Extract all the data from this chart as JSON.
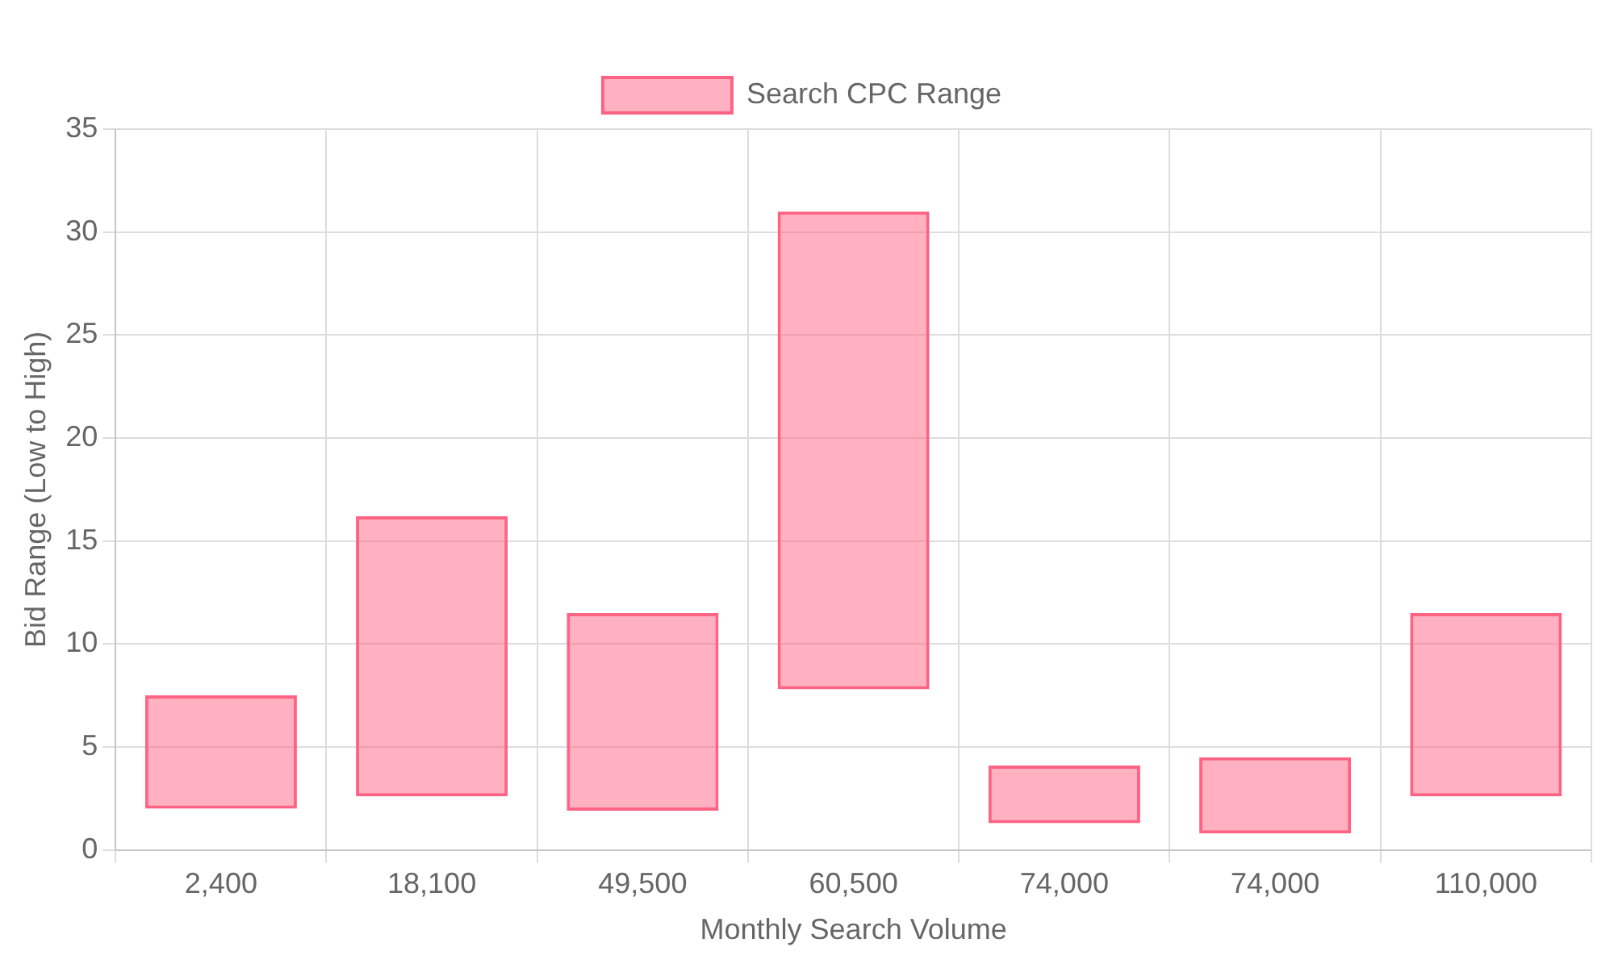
{
  "chart_data": {
    "type": "bar",
    "xlabel": "Monthly Search Volume",
    "ylabel": "Bid Range (Low to High)",
    "categories": [
      "2,400",
      "18,100",
      "49,500",
      "60,500",
      "74,000",
      "74,000",
      "110,000"
    ],
    "series": [
      {
        "name": "Search CPC Range",
        "color": "#ff6384",
        "base": [
          2,
          2.6,
          1.9,
          7.8,
          1.3,
          0.8,
          2.6
        ],
        "values": [
          5.5,
          13.6,
          9.6,
          23.2,
          2.8,
          3.7,
          8.9
        ]
      }
    ],
    "ylim": [
      0,
      35
    ],
    "yticks": [
      0,
      5,
      10,
      15,
      20,
      25,
      30,
      35
    ],
    "grid": true,
    "legend": "top"
  }
}
